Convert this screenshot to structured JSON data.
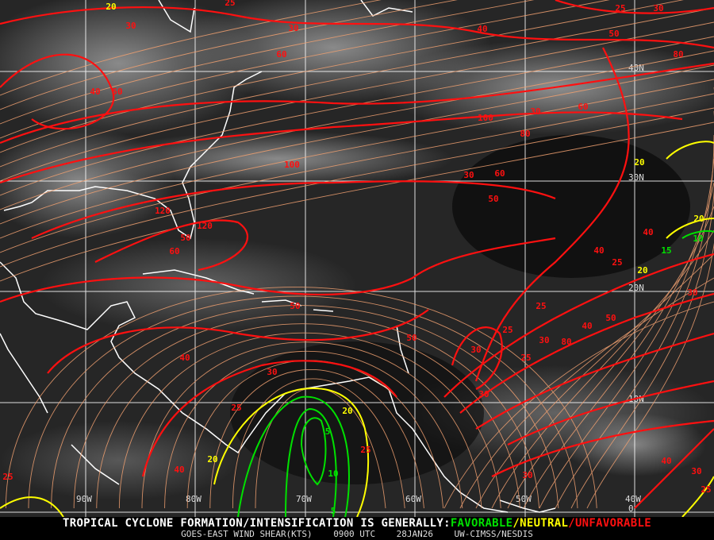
{
  "colors": {
    "favorable": "#00e000",
    "neutral": "#ffff00",
    "unfavorable": "#ff1010",
    "streamline": "#f0a070",
    "coast": "#ffffff",
    "grid": "#ffffff"
  },
  "grid": {
    "longitudes": [
      "90W",
      "80W",
      "70W",
      "60W",
      "50W",
      "40W"
    ],
    "latitudes": [
      "40N",
      "30N",
      "20N",
      "10N",
      "0"
    ]
  },
  "contour_labels": [
    "20",
    "25",
    "30",
    "30",
    "40",
    "50",
    "60",
    "40",
    "50",
    "30",
    "60",
    "80",
    "100",
    "120",
    "120",
    "50",
    "60",
    "50",
    "30",
    "60",
    "80",
    "100",
    "50",
    "40",
    "25",
    "30",
    "40",
    "20",
    "25",
    "10",
    "15",
    "40",
    "30",
    "50",
    "40",
    "30",
    "25",
    "25",
    "20",
    "5",
    "10",
    "5",
    "20",
    "25",
    "30",
    "40",
    "25",
    "25",
    "30",
    "25",
    "30",
    "80",
    "50",
    "30",
    "20",
    "40",
    "30",
    "25",
    "20"
  ],
  "banner": {
    "prefix": "TROPICAL CYCLONE FORMATION/INTENSIFICATION IS GENERALLY:",
    "favorable": "FAVORABLE",
    "sep1": "/",
    "neutral": "NEUTRAL",
    "sep2": "/",
    "unfavorable": "UNFAVORABLE",
    "product": "GOES-EAST WIND SHEAR(KTS)",
    "time": "0900 UTC",
    "date": "28JAN26",
    "source": "UW-CIMSS/NESDIS"
  }
}
